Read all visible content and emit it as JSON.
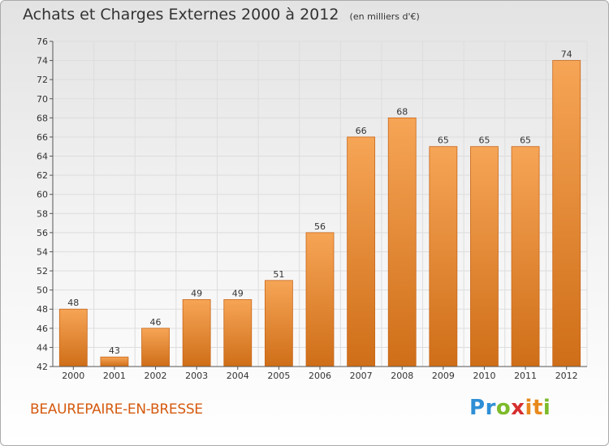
{
  "header": {
    "title": "Achats et Charges Externes 2000 à 2012",
    "subtitle": "(en milliers d'€)"
  },
  "footer": {
    "place": "BEAUREPAIRE-EN-BRESSE",
    "logo": {
      "letters": [
        "P",
        "r",
        "o",
        "x",
        "i",
        "t",
        "i"
      ],
      "colors": [
        "#2f8fd6",
        "#2f8fd6",
        "#7dbb2a",
        "#d62f2f",
        "#e8891e",
        "#e8891e",
        "#7dbb2a"
      ]
    }
  },
  "colors": {
    "bar_light": "#f6a556",
    "bar_dark": "#cf6e18",
    "bar_stroke": "#c8661a",
    "grid": "#dddddd",
    "axis": "#555555",
    "text": "#333333"
  },
  "chart_data": {
    "type": "bar",
    "categories": [
      "2000",
      "2001",
      "2002",
      "2003",
      "2004",
      "2005",
      "2006",
      "2007",
      "2008",
      "2009",
      "2010",
      "2011",
      "2012"
    ],
    "values": [
      48,
      43,
      46,
      49,
      49,
      51,
      56,
      66,
      68,
      65,
      65,
      65,
      74
    ],
    "data_labels": [
      "48",
      "43",
      "46",
      "49",
      "49",
      "51",
      "56",
      "66",
      "68",
      "65",
      "65",
      "65",
      "74"
    ],
    "y_ticks": [
      "42",
      "44",
      "46",
      "48",
      "50",
      "52",
      "54",
      "56",
      "58",
      "60",
      "62",
      "64",
      "66",
      "68",
      "70",
      "72",
      "74",
      "76"
    ],
    "ylim": [
      42,
      76
    ],
    "grid": true,
    "xlabel": "",
    "ylabel": ""
  }
}
